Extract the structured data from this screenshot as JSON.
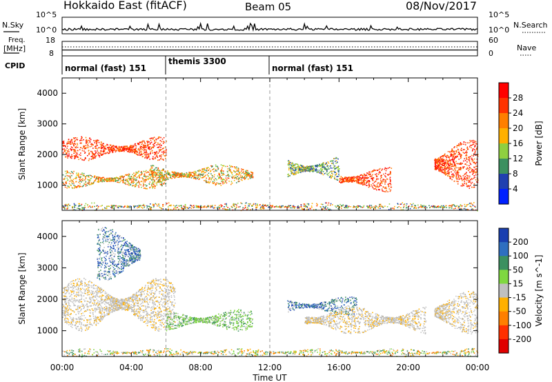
{
  "header": {
    "station": "Hokkaido East (fitACF)",
    "beam": "Beam 05",
    "date": "08/Nov/2017"
  },
  "summary": {
    "nsky_label": "N.Sky",
    "nsearch_label": "N.Search",
    "freq_label": "Freq.",
    "freq_unit": "[MHz]",
    "nave_label": "Nave",
    "cpid_label": "CPID",
    "left_ticks_top": [
      "10^5",
      "10^0"
    ],
    "right_ticks_top": [
      "10^5",
      "10^0"
    ],
    "freq_ticks": [
      "18",
      "8"
    ],
    "nave_ticks": [
      "60",
      "0"
    ]
  },
  "cpid_segments": [
    {
      "label": "normal (fast) 151",
      "start_hour": 0,
      "end_hour": 6
    },
    {
      "label": "themis 3300",
      "start_hour": 6,
      "end_hour": 12
    },
    {
      "label": "normal (fast) 151",
      "start_hour": 12,
      "end_hour": 24
    }
  ],
  "chart_data": [
    {
      "type": "heatmap",
      "panel": "power",
      "ylabel": "Slant Range [km]",
      "xlabel": "",
      "xlim": [
        0,
        24
      ],
      "ylim": [
        180,
        4500
      ],
      "yticks": [
        1000,
        2000,
        3000,
        4000
      ],
      "xticks_hours": [
        0,
        4,
        8,
        12,
        16,
        20,
        24
      ],
      "colorbar": {
        "label": "Power [dB]",
        "ticks": [
          "28",
          "24",
          "20",
          "16",
          "12",
          "8",
          "4"
        ],
        "colors": [
          "#ff0000",
          "#ff3300",
          "#ff7f00",
          "#ffb000",
          "#8fd040",
          "#3c9060",
          "#2040b0",
          "#0020ff"
        ]
      },
      "scatter_regions": [
        {
          "x": [
            0.0,
            6.0
          ],
          "y": [
            1800,
            2600
          ],
          "level": "high"
        },
        {
          "x": [
            0.0,
            6.0
          ],
          "y": [
            900,
            1500
          ],
          "level": "mid"
        },
        {
          "x": [
            5.0,
            11.0
          ],
          "y": [
            1000,
            1700
          ],
          "level": "mid"
        },
        {
          "x": [
            13.0,
            16.0
          ],
          "y": [
            1100,
            2000
          ],
          "level": "low"
        },
        {
          "x": [
            16.0,
            19.0
          ],
          "y": [
            800,
            1600
          ],
          "level": "high"
        },
        {
          "x": [
            21.5,
            24.0
          ],
          "y": [
            900,
            2500
          ],
          "level": "high"
        },
        {
          "x": [
            0.0,
            24.0
          ],
          "y": [
            180,
            450
          ],
          "level": "mixed"
        }
      ]
    },
    {
      "type": "heatmap",
      "panel": "velocity",
      "ylabel": "Slant Range [km]",
      "xlabel": "Time UT",
      "xlim": [
        0,
        24
      ],
      "ylim": [
        180,
        4500
      ],
      "yticks": [
        1000,
        2000,
        3000,
        4000
      ],
      "xtick_labels": [
        "00:00",
        "04:00",
        "08:00",
        "12:00",
        "16:00",
        "20:00",
        "00:00"
      ],
      "colorbar": {
        "label": "Velocity [m s^-1]",
        "ticks": [
          "200",
          "100",
          "50",
          "15",
          "-15",
          "-50",
          "-100",
          "-200"
        ],
        "colors": [
          "#1a3fb0",
          "#2f6fc0",
          "#3c9060",
          "#7fd840",
          "#c0c0c0",
          "#ffb000",
          "#ff7f00",
          "#ff3000",
          "#e00000"
        ]
      },
      "scatter_regions": [
        {
          "x": [
            0.0,
            6.5
          ],
          "y": [
            1000,
            2700
          ],
          "level": "grey"
        },
        {
          "x": [
            2.0,
            4.5
          ],
          "y": [
            2600,
            4300
          ],
          "level": "blue"
        },
        {
          "x": [
            6.0,
            11.0
          ],
          "y": [
            1000,
            1700
          ],
          "level": "green"
        },
        {
          "x": [
            13.0,
            17.0
          ],
          "y": [
            1500,
            2100
          ],
          "level": "blue"
        },
        {
          "x": [
            14.0,
            21.0
          ],
          "y": [
            900,
            1800
          ],
          "level": "grey"
        },
        {
          "x": [
            21.5,
            24.0
          ],
          "y": [
            900,
            2300
          ],
          "level": "grey"
        },
        {
          "x": [
            0.0,
            24.0
          ],
          "y": [
            180,
            450
          ],
          "level": "mixed"
        }
      ]
    }
  ]
}
